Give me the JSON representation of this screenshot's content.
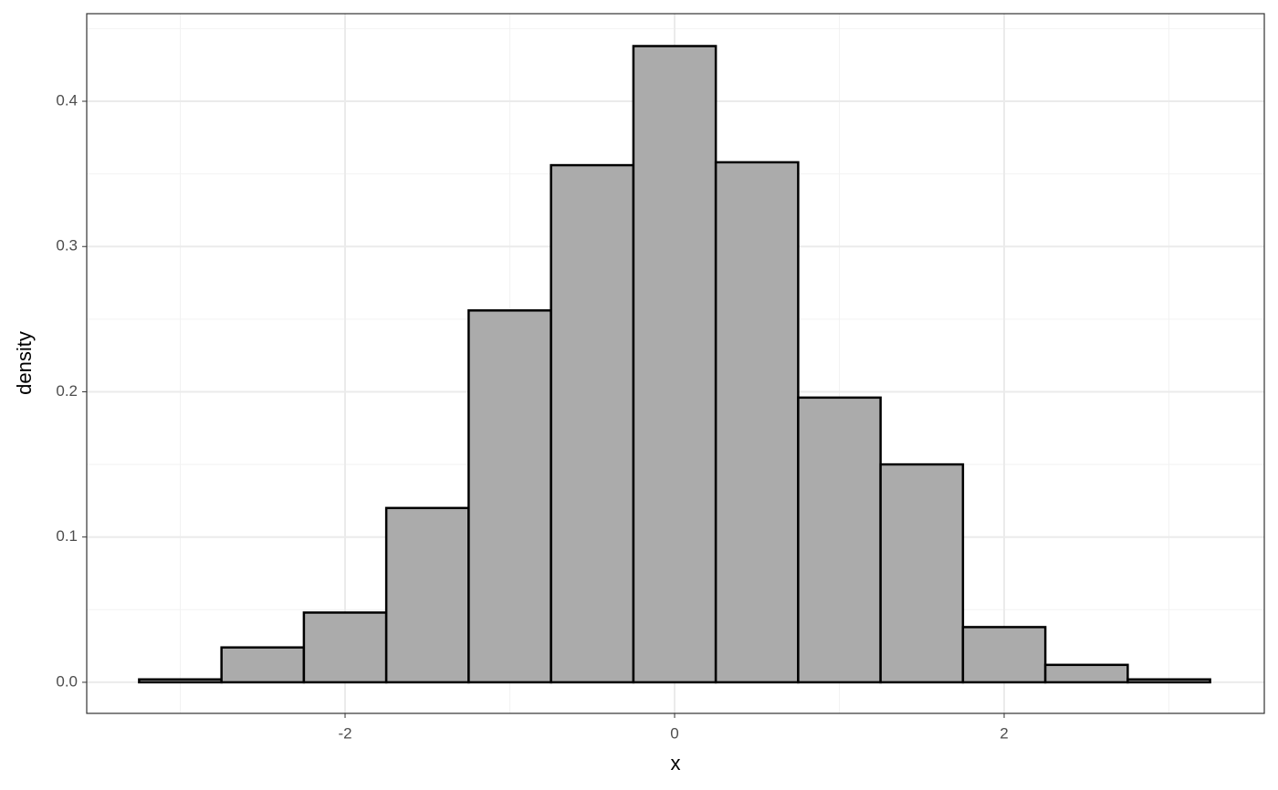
{
  "chart_data": {
    "type": "histogram",
    "xlabel": "x",
    "ylabel": "density",
    "bins": [
      -3.25,
      -2.75,
      -2.25,
      -1.75,
      -1.25,
      -0.75,
      -0.25,
      0.25,
      0.75,
      1.25,
      1.75,
      2.25,
      2.75,
      3.25
    ],
    "values": [
      0.002,
      0.024,
      0.048,
      0.12,
      0.256,
      0.356,
      0.438,
      0.358,
      0.196,
      0.15,
      0.038,
      0.012,
      0.002
    ],
    "color": "#ababab",
    "edgecolor": "#000000",
    "xlim": [
      -3.568,
      3.579
    ],
    "xticks": [
      -2,
      0,
      2
    ],
    "xminorticks": [
      -3,
      -1,
      1,
      3
    ],
    "ylim": [
      -0.0214,
      0.4603
    ],
    "yticks": [
      {
        "value": 0,
        "label": "0.0"
      },
      0.1,
      0.2,
      0.3,
      0.4
    ],
    "yminorticks": [
      0.05,
      0.15,
      0.25,
      0.35,
      0.45
    ],
    "grid": true
  }
}
